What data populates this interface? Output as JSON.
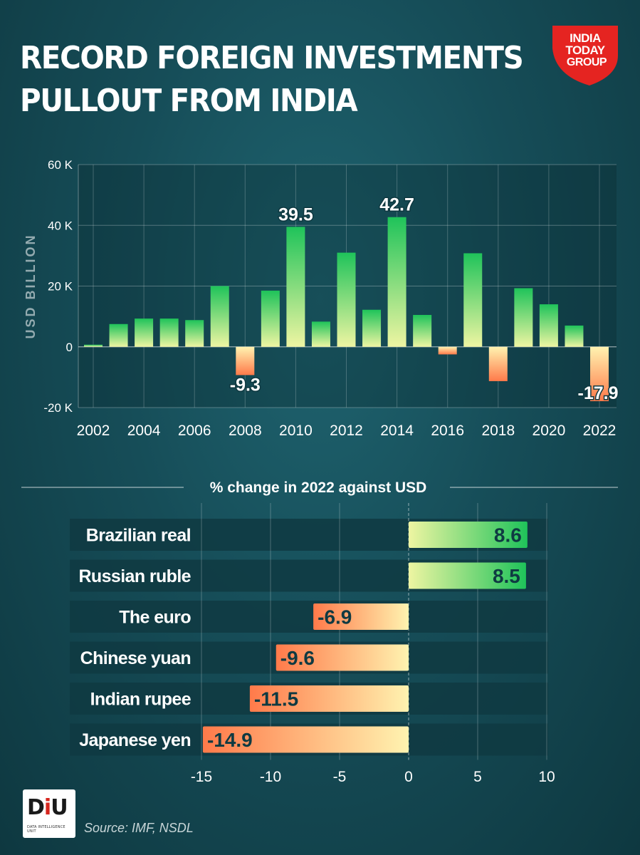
{
  "header": {
    "title_line1": "RECORD FOREIGN INVESTMENTS",
    "title_line2": "PULLOUT FROM INDIA",
    "logo_line1": "INDIA",
    "logo_line2": "TODAY",
    "logo_line3": "GROUP"
  },
  "colors": {
    "positive_top": "#1fc35a",
    "positive_bottom": "#eef5a2",
    "negative_top": "#fff3b0",
    "negative_bottom": "#ff7a4a",
    "logo_red": "#e52421",
    "label_panel": "#0f3a42"
  },
  "chart_data": [
    {
      "type": "bar",
      "ylabel": "USD BILLION",
      "ylim": [
        -20,
        60
      ],
      "yticks": [
        -20,
        0,
        20,
        40,
        60
      ],
      "ytick_labels": [
        "-20 K",
        "0",
        "20 K",
        "40 K",
        "60 K"
      ],
      "xtick_labels": [
        "2002",
        "2004",
        "2006",
        "2008",
        "2010",
        "2012",
        "2014",
        "2016",
        "2018",
        "2020",
        "2022"
      ],
      "categories": [
        2002,
        2003,
        2004,
        2005,
        2006,
        2007,
        2008,
        2009,
        2010,
        2011,
        2012,
        2013,
        2014,
        2015,
        2016,
        2017,
        2018,
        2019,
        2020,
        2021,
        2022
      ],
      "values": [
        0.7,
        7.5,
        9.3,
        9.3,
        8.8,
        20,
        -9.3,
        18.5,
        39.5,
        8.3,
        31,
        12.2,
        42.7,
        10.5,
        -2.5,
        30.8,
        -11.3,
        19.3,
        14,
        7,
        -17.9
      ],
      "data_labels": [
        {
          "category": 2008,
          "text": "-9.3"
        },
        {
          "category": 2010,
          "text": "39.5"
        },
        {
          "category": 2014,
          "text": "42.7"
        },
        {
          "category": 2022,
          "text": "-17.9"
        }
      ],
      "grid": true
    },
    {
      "type": "bar",
      "orientation": "horizontal",
      "title": "% change in 2022 against USD",
      "categories": [
        "Brazilian real",
        "Russian ruble",
        "The euro",
        "Chinese yuan",
        "Indian rupee",
        "Japanese yen"
      ],
      "values": [
        8.6,
        8.5,
        -6.9,
        -9.6,
        -11.5,
        -14.9
      ],
      "value_labels": [
        "8.6",
        "8.5",
        "-6.9",
        "-9.6",
        "-11.5",
        "-14.9"
      ],
      "xlim": [
        -15,
        10
      ],
      "xticks": [
        -15,
        -10,
        -5,
        0,
        5,
        10
      ],
      "xtick_labels": [
        "-15",
        "-10",
        "-5",
        "0",
        "5",
        "10"
      ],
      "grid": true
    }
  ],
  "footer": {
    "diu_logo": "DIU",
    "diu_tagline": "DATA INTELLIGENCE UNIT",
    "source": "Source: IMF, NSDL"
  }
}
